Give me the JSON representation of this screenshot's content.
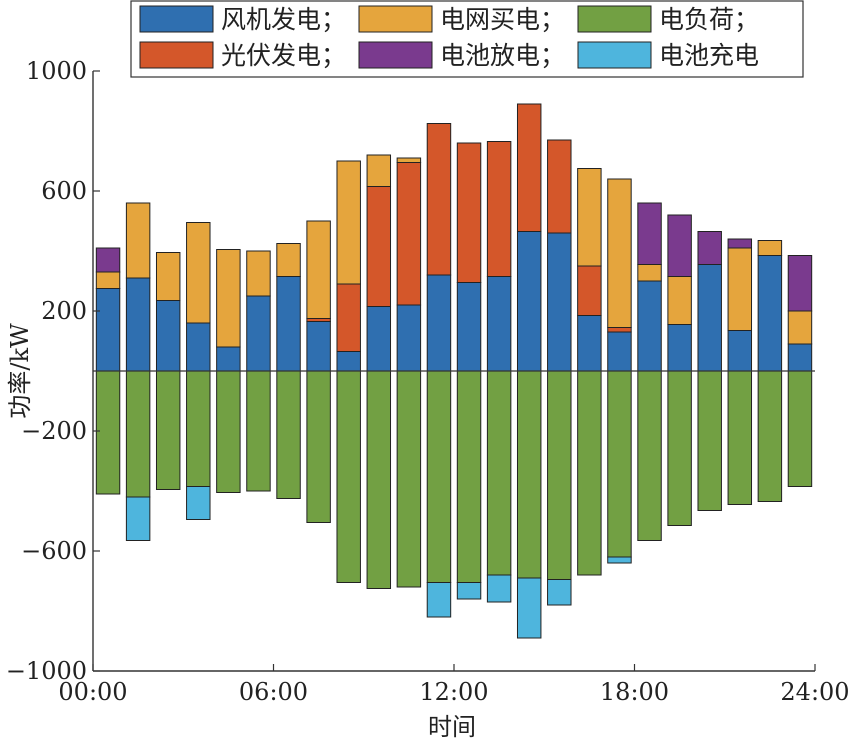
{
  "chart_data": {
    "type": "bar",
    "stacked": true,
    "xlabel": "时间",
    "ylabel": "功率/kW",
    "ylim": [
      -1000,
      1000
    ],
    "yticks": [
      -1000,
      -600,
      -200,
      200,
      600,
      1000
    ],
    "ytick_labels": [
      "−1000",
      "−600",
      "−200",
      "200",
      "600",
      "1000"
    ],
    "xlim": [
      0,
      24
    ],
    "xticks": [
      0,
      6,
      12,
      18,
      24
    ],
    "xtick_labels": [
      "00:00",
      "06:00",
      "12:00",
      "18:00",
      "24:00"
    ],
    "zero_line": true,
    "legend_placement": "top",
    "x": [
      1,
      2,
      3,
      4,
      5,
      6,
      7,
      8,
      9,
      10,
      11,
      12,
      13,
      14,
      15,
      16,
      17,
      18,
      19,
      20,
      21,
      22,
      23,
      24
    ],
    "series": [
      {
        "name": "风机发电；",
        "color": "#2f6fb0",
        "values": [
          275,
          310,
          235,
          160,
          80,
          250,
          315,
          165,
          65,
          215,
          220,
          320,
          295,
          315,
          465,
          460,
          185,
          130,
          300,
          155,
          355,
          135,
          385,
          90
        ]
      },
      {
        "name": "光伏发电；",
        "color": "#d4572a",
        "values": [
          0,
          0,
          0,
          0,
          0,
          0,
          0,
          10,
          225,
          400,
          475,
          505,
          465,
          450,
          425,
          310,
          165,
          15,
          0,
          0,
          0,
          0,
          0,
          0
        ]
      },
      {
        "name": "电网买电；",
        "color": "#e5a53d",
        "values": [
          55,
          250,
          160,
          335,
          325,
          150,
          110,
          325,
          410,
          105,
          15,
          0,
          0,
          0,
          0,
          0,
          325,
          495,
          55,
          160,
          0,
          275,
          50,
          110
        ]
      },
      {
        "name": "电池放电；",
        "color": "#7a3a8e",
        "values": [
          80,
          0,
          0,
          0,
          0,
          0,
          0,
          0,
          0,
          0,
          0,
          0,
          0,
          0,
          0,
          0,
          0,
          0,
          205,
          205,
          110,
          30,
          0,
          185
        ]
      },
      {
        "name": "电负荷；",
        "color": "#72a043",
        "values": [
          -410,
          -420,
          -395,
          -385,
          -405,
          -400,
          -425,
          -505,
          -705,
          -725,
          -720,
          -705,
          -705,
          -680,
          -690,
          -695,
          -680,
          -620,
          -565,
          -515,
          -465,
          -445,
          -435,
          -385
        ]
      },
      {
        "name": "电池充电",
        "color": "#4eb5dd",
        "values": [
          0,
          -145,
          0,
          -110,
          0,
          0,
          0,
          0,
          0,
          0,
          0,
          -115,
          -55,
          -90,
          -200,
          -85,
          0,
          -20,
          0,
          0,
          0,
          0,
          0,
          0
        ]
      }
    ],
    "legend_order": [
      "风机发电；",
      "电网买电；",
      "电负荷；",
      "光伏发电；",
      "电池放电；",
      "电池充电"
    ]
  }
}
